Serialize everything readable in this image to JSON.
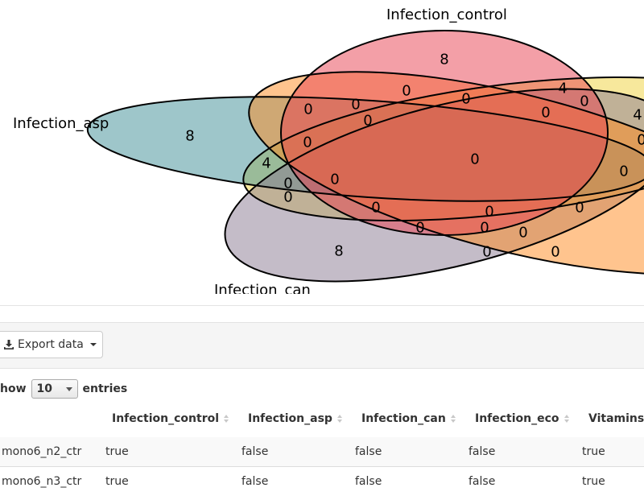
{
  "venn": {
    "sets": [
      {
        "name": "Infection_control",
        "color": "#e8404f"
      },
      {
        "name": "Infection_asp",
        "color": "#3d8d96"
      },
      {
        "name": "Infection_can",
        "color": "#8a7a92"
      },
      {
        "name": "Infection_eco",
        "color": "#ff8a1e"
      },
      {
        "name": "Vitamins",
        "color": "#f0d23a"
      }
    ],
    "labels": {
      "control": "Infection_control",
      "asp": "Infection_asp",
      "can": "Infection_can"
    },
    "counts": [
      "8",
      "8",
      "8",
      "4",
      "4",
      "4",
      "0",
      "0",
      "0",
      "0",
      "0",
      "0",
      "0",
      "0",
      "0",
      "0",
      "0",
      "0",
      "0",
      "0",
      "0",
      "0",
      "0",
      "0",
      "0",
      "0",
      "0",
      "0"
    ]
  },
  "toolbar": {
    "export_label": "Export data",
    "download_icon": "download-icon"
  },
  "length": {
    "prefix": "how",
    "value": "10",
    "suffix": "entries"
  },
  "table": {
    "columns": [
      "Infection_control",
      "Infection_asp",
      "Infection_can",
      "Infection_eco",
      "Vitamins"
    ],
    "rows": [
      {
        "id": "mono6_n2_ctr",
        "cells": [
          "true",
          "false",
          "false",
          "false",
          "true"
        ]
      },
      {
        "id": "mono6_n3_ctr",
        "cells": [
          "true",
          "false",
          "false",
          "false",
          "true"
        ]
      }
    ]
  }
}
